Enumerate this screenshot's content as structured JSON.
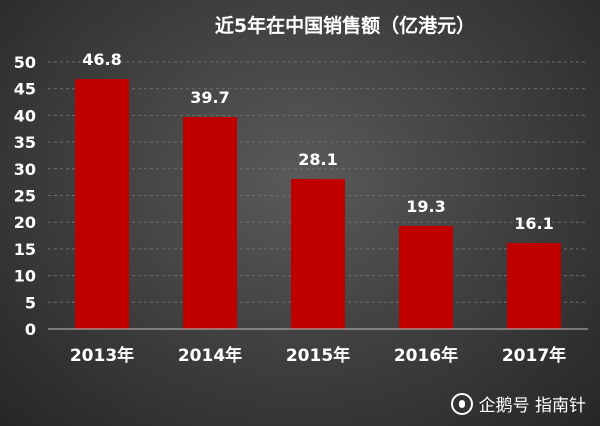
{
  "chart_data": {
    "type": "bar",
    "title": "近5年在中国销售额（亿港元）",
    "categories": [
      "2013年",
      "2014年",
      "2015年",
      "2016年",
      "2017年"
    ],
    "values": [
      46.8,
      39.7,
      28.1,
      19.3,
      16.1
    ],
    "data_labels": [
      "46.8",
      "39.7",
      "28.1",
      "19.3",
      "16.1"
    ],
    "yticks": [
      0,
      5,
      10,
      15,
      20,
      25,
      30,
      35,
      40,
      45,
      50
    ],
    "ylim": [
      0,
      50
    ],
    "xlabel": "",
    "ylabel": "",
    "grid": true,
    "bar_color": "#c00000",
    "background_color": "#404040"
  },
  "watermark": {
    "icon": "penguin-icon",
    "text": "企鹅号 指南针"
  }
}
